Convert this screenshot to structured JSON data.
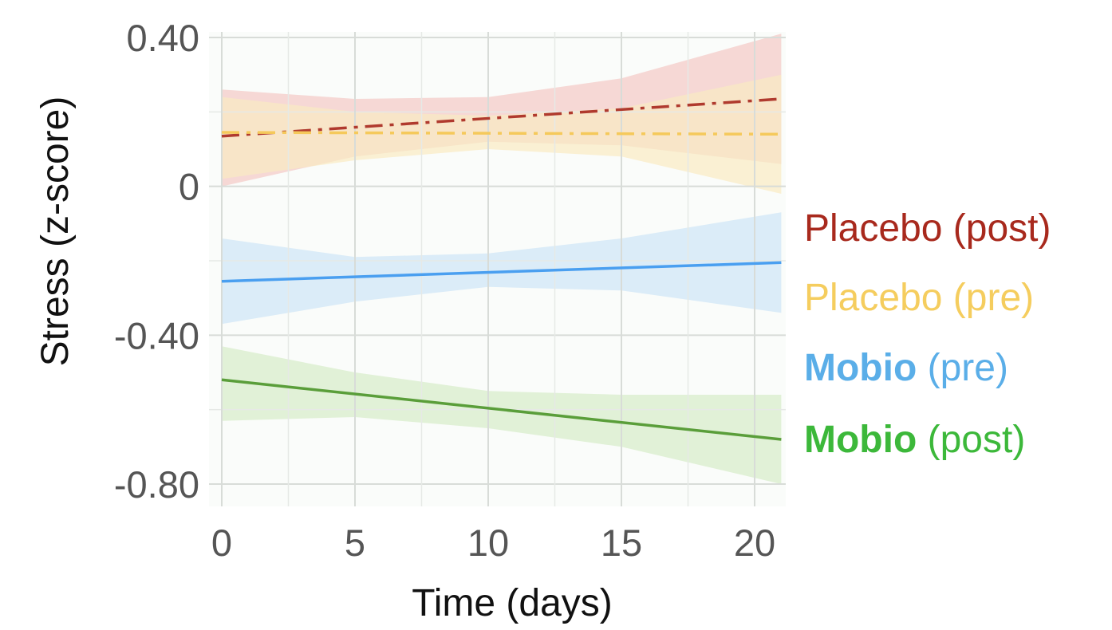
{
  "chart_data": {
    "type": "line",
    "title": "",
    "xlabel": "Time (days)",
    "ylabel": "Stress (z-score)",
    "xlim": [
      0,
      21
    ],
    "ylim": [
      -0.85,
      0.42
    ],
    "x_ticks": [
      0,
      5,
      10,
      15,
      20
    ],
    "x_tick_labels": [
      "0",
      "5",
      "10",
      "15",
      "20"
    ],
    "y_ticks": [
      0.4,
      0,
      -0.4,
      -0.8
    ],
    "y_tick_labels": [
      "0.40",
      "0",
      "-0.40",
      "-0.80"
    ],
    "grid": true,
    "legend_placement": "right",
    "series": [
      {
        "name": "Placebo (post)",
        "name_bold": "",
        "name_rest": "Placebo (post)",
        "color": "#b03a2e",
        "band_color": "#f3c9c4",
        "line_style": "dash-dot",
        "x": [
          0,
          21
        ],
        "y": [
          0.135,
          0.235
        ],
        "ci_x": [
          0,
          5,
          10,
          15,
          21
        ],
        "ci_lower": [
          0.0,
          0.08,
          0.12,
          0.11,
          0.06
        ],
        "ci_upper": [
          0.26,
          0.235,
          0.24,
          0.29,
          0.41
        ]
      },
      {
        "name": "Placebo (pre)",
        "name_bold": "",
        "name_rest": "Placebo (pre)",
        "color": "#f5c95b",
        "band_color": "#f9ebc2",
        "line_style": "dash-dot",
        "x": [
          0,
          21
        ],
        "y": [
          0.145,
          0.14
        ],
        "ci_x": [
          0,
          5,
          10,
          15,
          21
        ],
        "ci_lower": [
          0.02,
          0.07,
          0.1,
          0.08,
          -0.02
        ],
        "ci_upper": [
          0.24,
          0.2,
          0.19,
          0.21,
          0.3
        ]
      },
      {
        "name": "Mobio (pre)",
        "name_bold": "Mobio",
        "name_rest": " (pre)",
        "color": "#4a9ff0",
        "band_color": "#cde6f6",
        "line_style": "solid",
        "x": [
          0,
          21
        ],
        "y": [
          -0.255,
          -0.205
        ],
        "ci_x": [
          0,
          5,
          10,
          15,
          21
        ],
        "ci_lower": [
          -0.37,
          -0.31,
          -0.27,
          -0.28,
          -0.34
        ],
        "ci_upper": [
          -0.14,
          -0.19,
          -0.18,
          -0.14,
          -0.07
        ]
      },
      {
        "name": "Mobio (post)",
        "name_bold": "Mobio",
        "name_rest": " (post)",
        "color": "#5a9e3a",
        "band_color": "#d5edc8",
        "line_style": "solid",
        "x": [
          0,
          21
        ],
        "y": [
          -0.52,
          -0.68
        ],
        "ci_x": [
          0,
          5,
          10,
          15,
          21
        ],
        "ci_lower": [
          -0.63,
          -0.62,
          -0.65,
          -0.7,
          -0.8
        ],
        "ci_upper": [
          -0.43,
          -0.5,
          -0.55,
          -0.56,
          -0.56
        ]
      }
    ]
  },
  "legend_colors": {
    "Placebo (post)": "#a8291d",
    "Placebo (pre)": "#f5cd5e",
    "Mobio (pre)": "#5aaee8",
    "Mobio (post)": "#3cb83a"
  }
}
